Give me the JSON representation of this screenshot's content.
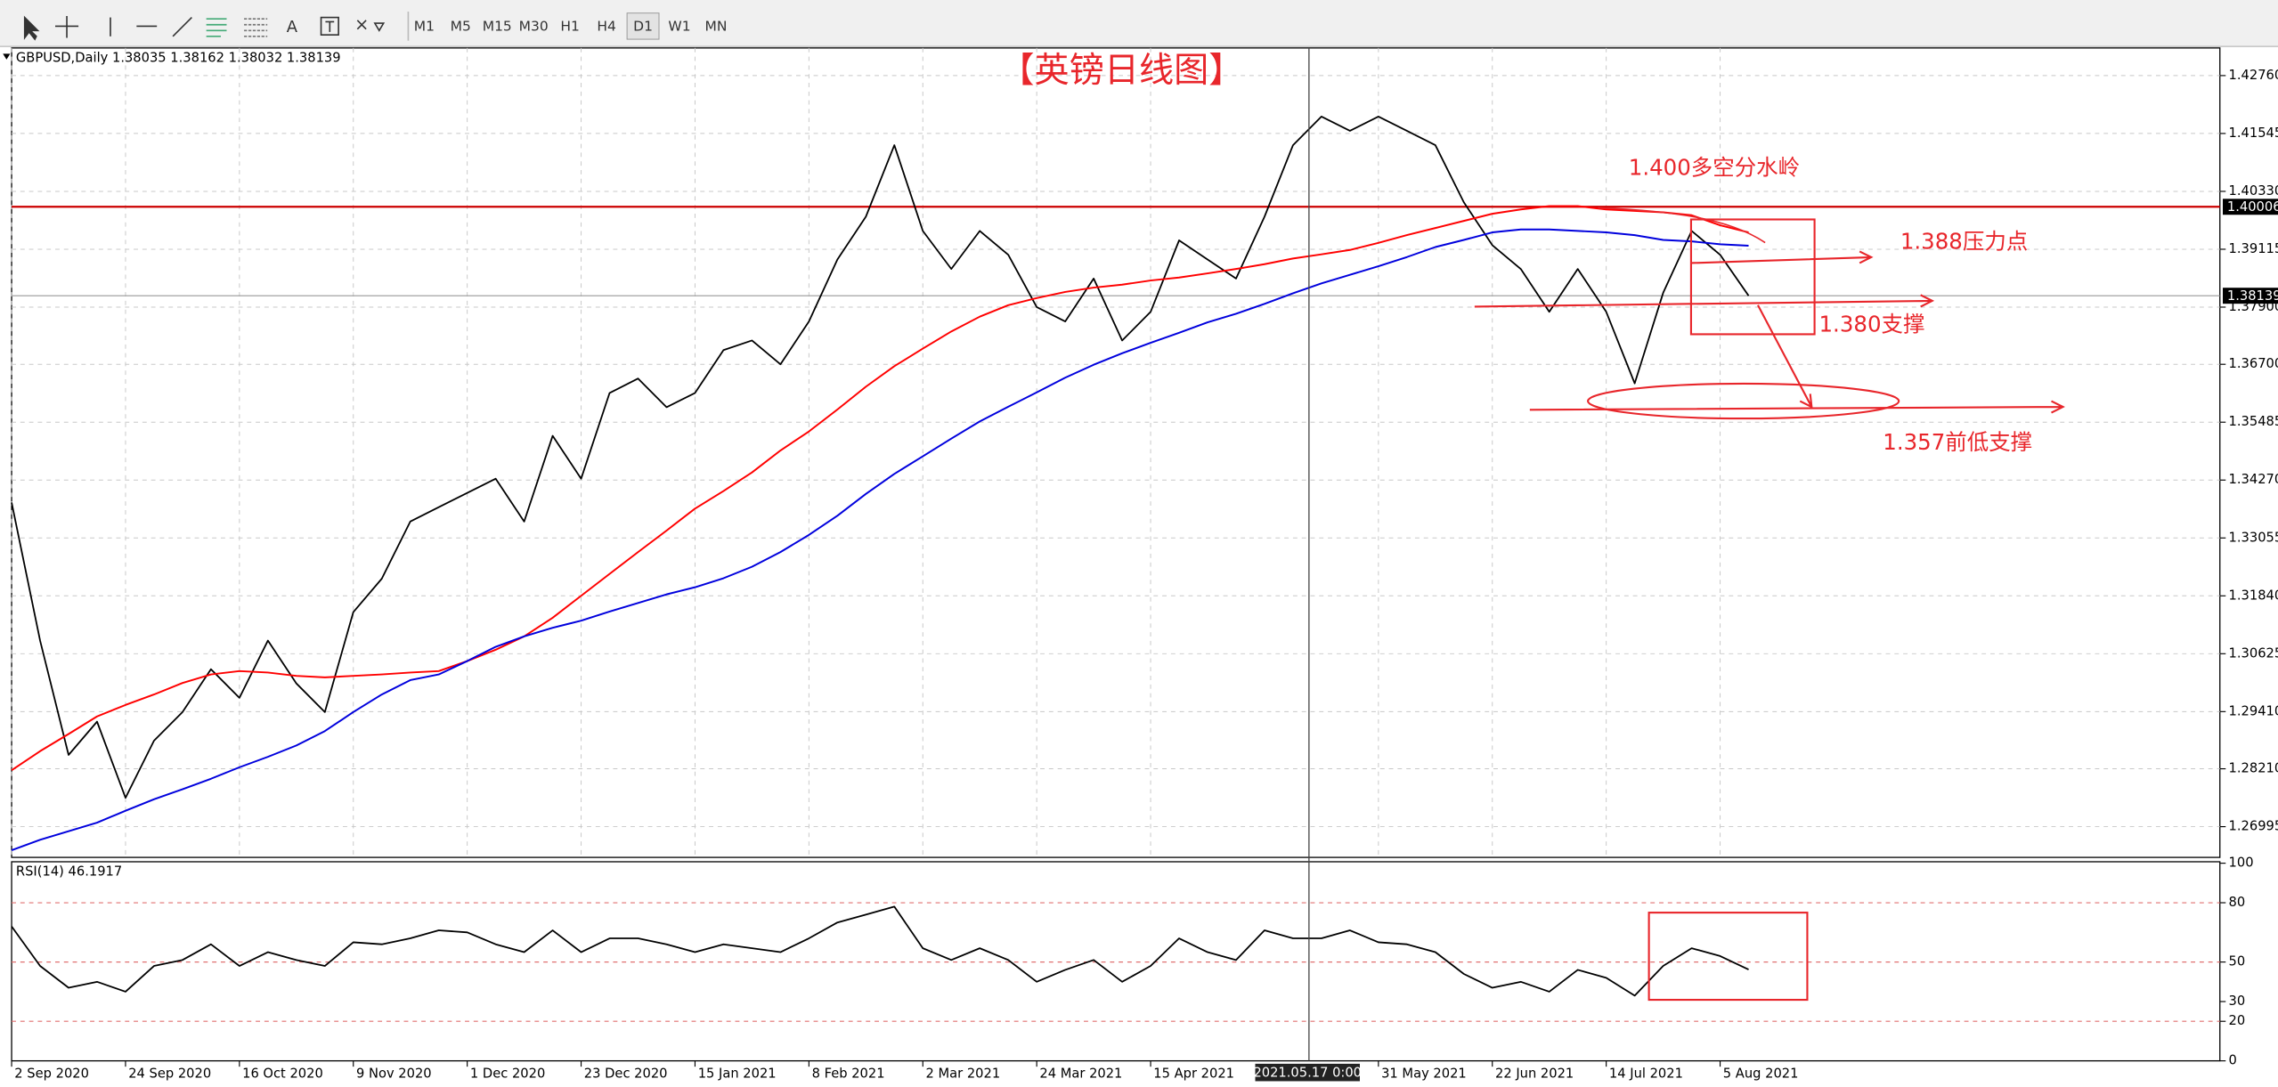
{
  "toolbar": {
    "tools": [
      "A"
    ],
    "periods": [
      "M1",
      "M5",
      "M15",
      "M30",
      "H1",
      "H4",
      "D1",
      "W1",
      "MN"
    ]
  },
  "crosshair": {
    "label": "2021.05.17 0:00"
  },
  "chart_data": [
    {
      "type": "line",
      "title": "GBPUSD,Daily  1.38035 1.38162 1.38032 1.38139",
      "annotations": [
        "【英镑日线图】",
        "1.400多空分水岭",
        "1.388压力点",
        "1.380支撑",
        "1.357前低支撑"
      ],
      "categories": [
        "2 Sep 2020",
        null,
        null,
        null,
        "24 Sep 2020",
        null,
        null,
        null,
        "16 Oct 2020",
        null,
        null,
        null,
        "9 Nov 2020",
        null,
        null,
        null,
        "1 Dec 2020",
        null,
        null,
        null,
        "23 Dec 2020",
        null,
        null,
        null,
        "15 Jan 2021",
        null,
        null,
        null,
        "8 Feb 2021",
        null,
        null,
        null,
        "2 Mar 2021",
        null,
        null,
        null,
        "24 Mar 2021",
        null,
        null,
        null,
        "15 Apr 2021",
        null,
        null,
        null,
        null,
        null,
        null,
        null,
        "31 May 2021",
        null,
        null,
        null,
        "22 Jun 2021",
        null,
        null,
        null,
        "14 Jul 2021",
        null,
        null,
        null,
        "5 Aug 2021",
        null
      ],
      "series": [
        {
          "color": "#000000",
          "values": [
            1.338,
            1.309,
            1.285,
            1.292,
            1.276,
            1.288,
            1.294,
            1.303,
            1.297,
            1.309,
            1.3,
            1.294,
            1.315,
            1.322,
            1.334,
            1.337,
            1.34,
            1.343,
            1.334,
            1.352,
            1.343,
            1.361,
            1.364,
            1.358,
            1.361,
            1.37,
            1.372,
            1.367,
            1.376,
            1.389,
            1.398,
            1.413,
            1.395,
            1.387,
            1.395,
            1.39,
            1.379,
            1.376,
            1.385,
            1.372,
            1.378,
            1.393,
            1.389,
            1.385,
            1.398,
            1.413,
            1.419,
            1.416,
            1.419,
            1.416,
            1.413,
            1.401,
            1.392,
            1.387,
            1.378,
            1.387,
            1.378,
            1.363,
            1.382,
            1.395,
            1.39,
            1.38139
          ]
        },
        {
          "color": "#ff0000",
          "values": [
            1.2818,
            1.2858,
            1.2894,
            1.2931,
            1.2955,
            1.2977,
            1.3001,
            1.3019,
            1.3026,
            1.3023,
            1.3016,
            1.3013,
            1.3016,
            1.3019,
            1.3023,
            1.3026,
            1.3047,
            1.3071,
            1.3099,
            1.3138,
            1.3184,
            1.323,
            1.3276,
            1.3321,
            1.3367,
            1.3404,
            1.3443,
            1.3489,
            1.3529,
            1.3575,
            1.3623,
            1.3666,
            1.3703,
            1.3739,
            1.377,
            1.3794,
            1.3809,
            1.3822,
            1.3831,
            1.3837,
            1.3846,
            1.3852,
            1.3861,
            1.387,
            1.388,
            1.3892,
            1.3901,
            1.391,
            1.3925,
            1.3941,
            1.3956,
            1.3971,
            1.3986,
            1.3995,
            1.4002,
            1.4002,
            1.3995,
            1.3992,
            1.3989,
            1.3983,
            1.3962,
            1.3947
          ]
        },
        {
          "color": "#0000dd",
          "values": [
            1.265,
            1.2672,
            1.269,
            1.2708,
            1.2733,
            1.2757,
            1.2778,
            1.28,
            1.2824,
            1.2846,
            1.287,
            1.29,
            1.294,
            1.2977,
            1.3007,
            1.3019,
            1.3047,
            1.3077,
            1.3099,
            1.3117,
            1.3132,
            1.3151,
            1.3169,
            1.3187,
            1.3202,
            1.3221,
            1.3245,
            1.3276,
            1.3312,
            1.3352,
            1.3398,
            1.344,
            1.3477,
            1.3514,
            1.355,
            1.3581,
            1.3611,
            1.3642,
            1.3669,
            1.3693,
            1.3715,
            1.3736,
            1.3758,
            1.3776,
            1.3797,
            1.3819,
            1.384,
            1.3858,
            1.3876,
            1.3895,
            1.3916,
            1.3931,
            1.3947,
            1.3953,
            1.3953,
            1.395,
            1.3947,
            1.3941,
            1.3931,
            1.3928,
            1.3922,
            1.3919
          ]
        }
      ],
      "hlines": [
        {
          "value": 1.40006,
          "color": "#cc0000"
        },
        {
          "value": 1.38139,
          "color": "#999999"
        }
      ],
      "ylim": [
        1.2635,
        1.4334
      ],
      "yticks": [
        {
          "value": 1.4276,
          "label": "1.42760"
        },
        1.41545,
        {
          "value": 1.4033,
          "label": "1.40330"
        },
        1.39115,
        {
          "value": 1.379,
          "label": "1.37900"
        },
        {
          "value": 1.367,
          "label": "1.36700"
        },
        1.35485,
        {
          "value": 1.3427,
          "label": "1.34270"
        },
        1.33055,
        {
          "value": 1.3184,
          "label": "1.31840"
        },
        1.30625,
        {
          "value": 1.2941,
          "label": "1.29410"
        },
        {
          "value": 1.2821,
          "label": "1.28210"
        },
        1.26995
      ],
      "grid": true
    },
    {
      "type": "line",
      "title": "RSI(14) 46.1917",
      "series": [
        {
          "color": "#000000",
          "values": [
            68,
            48,
            37,
            40,
            35,
            48,
            51,
            59,
            48,
            55,
            51,
            48,
            60,
            59,
            62,
            66,
            65,
            59,
            55,
            66,
            55,
            62,
            62,
            59,
            55,
            59,
            57,
            55,
            62,
            70,
            74,
            78,
            57,
            51,
            57,
            51,
            40,
            46,
            51,
            40,
            48,
            62,
            55,
            51,
            66,
            62,
            62,
            66,
            60,
            59,
            55,
            44,
            37,
            40,
            35,
            46,
            42,
            33,
            48,
            57,
            53,
            46.1917
          ]
        }
      ],
      "levels": [
        80,
        50,
        20
      ],
      "level_color": "#e07070",
      "ylim": [
        0,
        100
      ],
      "yticks": [
        100,
        80,
        50,
        30,
        20,
        0
      ]
    }
  ]
}
